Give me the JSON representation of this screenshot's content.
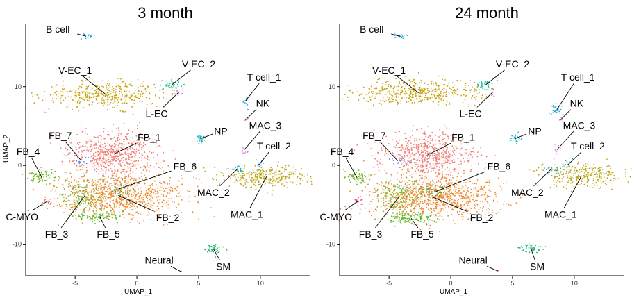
{
  "chart_data": [
    {
      "type": "scatter",
      "title": "3 month",
      "xlabel": "UMAP_1",
      "ylabel": "UMAP_2",
      "xlim": [
        -9,
        14
      ],
      "ylim": [
        -14,
        18
      ],
      "xticks": [
        -5,
        0,
        5,
        10
      ],
      "yticks": [
        -10,
        0,
        10
      ],
      "grid": false,
      "clusters": [
        {
          "name": "B cell",
          "color": "#1aa3de",
          "center": [
            -4.1,
            16.4
          ],
          "spread": [
            0.35,
            0.2
          ],
          "n": 18,
          "label_at": [
            -6.4,
            17.3
          ]
        },
        {
          "name": "V-EC_1",
          "color": "#c8a30e",
          "center": [
            -2.5,
            9.0
          ],
          "spread": [
            2.5,
            0.8
          ],
          "n": 420,
          "label_at": [
            -5.0,
            12.1
          ]
        },
        {
          "name": "V-EC_2",
          "color": "#1cbf91",
          "center": [
            2.8,
            10.2
          ],
          "spread": [
            0.4,
            0.3
          ],
          "n": 35,
          "label_at": [
            5.0,
            12.9
          ]
        },
        {
          "name": "L-EC",
          "color": "#e07ad8",
          "center": [
            3.4,
            9.3
          ],
          "spread": [
            0.15,
            0.3
          ],
          "n": 8,
          "label_at": [
            1.6,
            6.6
          ]
        },
        {
          "name": "T cell_1",
          "color": "#1aa3de",
          "center": [
            8.8,
            8.2
          ],
          "spread": [
            0.12,
            0.5
          ],
          "n": 12,
          "label_at": [
            10.3,
            11.2
          ]
        },
        {
          "name": "NK",
          "color": "#e07ad8",
          "center": [
            8.8,
            5.8
          ],
          "spread": [
            0.1,
            0.2
          ],
          "n": 5,
          "label_at": [
            10.2,
            7.9
          ]
        },
        {
          "name": "NP",
          "color": "#16b2c2",
          "center": [
            5.2,
            3.4
          ],
          "spread": [
            0.2,
            0.25
          ],
          "n": 25,
          "label_at": [
            6.8,
            4.4
          ]
        },
        {
          "name": "MAC_3",
          "color": "#e07ad8",
          "center": [
            8.7,
            2.0
          ],
          "spread": [
            0.15,
            0.4
          ],
          "n": 10,
          "label_at": [
            10.4,
            5.1
          ]
        },
        {
          "name": "T cell_2",
          "color": "#1aa3de",
          "center": [
            9.9,
            0.1
          ],
          "spread": [
            0.2,
            0.3
          ],
          "n": 10,
          "label_at": [
            11.1,
            2.5
          ]
        },
        {
          "name": "MAC_2",
          "color": "#16b2c2",
          "center": [
            8.1,
            -0.5
          ],
          "spread": [
            0.4,
            0.3
          ],
          "n": 20,
          "label_at": [
            6.2,
            -3.4
          ]
        },
        {
          "name": "MAC_1",
          "color": "#bba614",
          "center": [
            10.5,
            -1.4
          ],
          "spread": [
            1.7,
            0.7
          ],
          "n": 300,
          "label_at": [
            8.9,
            -6.2
          ]
        },
        {
          "name": "FB_1",
          "color": "#f07f78",
          "center": [
            -1.8,
            1.5
          ],
          "spread": [
            1.9,
            1.5
          ],
          "n": 650,
          "label_at": [
            1.0,
            3.6
          ]
        },
        {
          "name": "FB_7",
          "color": "#4a8ff0",
          "center": [
            -4.5,
            0.6
          ],
          "spread": [
            0.4,
            0.2
          ],
          "n": 12,
          "label_at": [
            -6.2,
            3.8
          ]
        },
        {
          "name": "FB_4",
          "color": "#6fb323",
          "center": [
            -7.7,
            -1.5
          ],
          "spread": [
            0.6,
            0.4
          ],
          "n": 70,
          "label_at": [
            -8.8,
            1.8
          ]
        },
        {
          "name": "FB_6",
          "color": "#13a845",
          "center": [
            -1.5,
            -3.0
          ],
          "spread": [
            0.5,
            0.4
          ],
          "n": 30,
          "label_at": [
            3.9,
            -0.1
          ]
        },
        {
          "name": "FB_2",
          "color": "#ee8a2d",
          "center": [
            -1.5,
            -3.8
          ],
          "spread": [
            2.6,
            1.4
          ],
          "n": 900,
          "label_at": [
            2.5,
            -6.6
          ]
        },
        {
          "name": "C-MYO",
          "color": "#e8409a",
          "center": [
            -7.3,
            -4.6
          ],
          "spread": [
            0.12,
            0.3
          ],
          "n": 8,
          "label_at": [
            -9.3,
            -6.5
          ]
        },
        {
          "name": "FB_3",
          "color": "#7aba2a",
          "center": [
            -4.2,
            -3.8
          ],
          "spread": [
            0.9,
            1.2
          ],
          "n": 160,
          "label_at": [
            -6.5,
            -8.7
          ]
        },
        {
          "name": "FB_5",
          "color": "#5cb62a",
          "center": [
            -3.0,
            -6.5
          ],
          "spread": [
            1.0,
            0.3
          ],
          "n": 80,
          "label_at": [
            -2.3,
            -8.7
          ]
        },
        {
          "name": "SM",
          "color": "#17b56d",
          "center": [
            6.2,
            -10.6
          ],
          "spread": [
            0.4,
            0.3
          ],
          "n": 40,
          "label_at": [
            7.0,
            -12.8
          ]
        },
        {
          "name": "Neural",
          "color": "#e8409a",
          "center": [
            3.6,
            -13.5
          ],
          "spread": [
            0.05,
            0.05
          ],
          "n": 2,
          "label_at": [
            1.8,
            -12.0
          ]
        }
      ]
    },
    {
      "type": "scatter",
      "title": "24 month",
      "xlabel": "UMAP_1",
      "ylabel": "",
      "xlim": [
        -9,
        14
      ],
      "ylim": [
        -14,
        18
      ],
      "xticks": [
        -5,
        0,
        5,
        10
      ],
      "yticks": [
        -10,
        0,
        10
      ],
      "grid": false,
      "clusters": [
        {
          "name": "B cell",
          "color": "#1aa3de",
          "center": [
            -4.1,
            16.4
          ],
          "spread": [
            0.35,
            0.2
          ],
          "n": 18,
          "label_at": [
            -6.4,
            17.3
          ]
        },
        {
          "name": "V-EC_1",
          "color": "#c8a30e",
          "center": [
            -2.6,
            9.2
          ],
          "spread": [
            2.5,
            0.8
          ],
          "n": 450,
          "label_at": [
            -5.0,
            12.1
          ]
        },
        {
          "name": "V-EC_2",
          "color": "#1cbf91",
          "center": [
            2.8,
            10.2
          ],
          "spread": [
            0.4,
            0.3
          ],
          "n": 35,
          "label_at": [
            5.0,
            12.9
          ]
        },
        {
          "name": "L-EC",
          "color": "#e07ad8",
          "center": [
            3.4,
            9.3
          ],
          "spread": [
            0.15,
            0.3
          ],
          "n": 8,
          "label_at": [
            1.6,
            6.6
          ]
        },
        {
          "name": "T cell_1",
          "color": "#1aa3de",
          "center": [
            8.6,
            7.1
          ],
          "spread": [
            0.3,
            0.4
          ],
          "n": 25,
          "label_at": [
            10.3,
            11.2
          ]
        },
        {
          "name": "NK",
          "color": "#e07ad8",
          "center": [
            8.9,
            5.8
          ],
          "spread": [
            0.1,
            0.2
          ],
          "n": 6,
          "label_at": [
            10.2,
            7.9
          ]
        },
        {
          "name": "NP",
          "color": "#16b2c2",
          "center": [
            5.2,
            3.4
          ],
          "spread": [
            0.2,
            0.25
          ],
          "n": 25,
          "label_at": [
            6.8,
            4.4
          ]
        },
        {
          "name": "MAC_3",
          "color": "#e07ad8",
          "center": [
            8.6,
            2.0
          ],
          "spread": [
            0.15,
            0.4
          ],
          "n": 10,
          "label_at": [
            10.4,
            5.1
          ]
        },
        {
          "name": "T cell_2",
          "color": "#1aa3de",
          "center": [
            9.5,
            0.1
          ],
          "spread": [
            0.2,
            0.3
          ],
          "n": 10,
          "label_at": [
            11.1,
            2.5
          ]
        },
        {
          "name": "MAC_2",
          "color": "#16b2c2",
          "center": [
            8.1,
            -0.5
          ],
          "spread": [
            0.4,
            0.3
          ],
          "n": 20,
          "label_at": [
            6.2,
            -3.4
          ]
        },
        {
          "name": "MAC_1",
          "color": "#bba614",
          "center": [
            10.6,
            -1.3
          ],
          "spread": [
            1.7,
            0.7
          ],
          "n": 280,
          "label_at": [
            8.9,
            -6.2
          ]
        },
        {
          "name": "FB_1",
          "color": "#f07f78",
          "center": [
            -1.9,
            1.3
          ],
          "spread": [
            1.9,
            1.5
          ],
          "n": 650,
          "label_at": [
            1.0,
            3.6
          ]
        },
        {
          "name": "FB_7",
          "color": "#4a8ff0",
          "center": [
            -4.3,
            0.6
          ],
          "spread": [
            0.4,
            0.2
          ],
          "n": 12,
          "label_at": [
            -6.2,
            3.8
          ]
        },
        {
          "name": "FB_4",
          "color": "#6fb323",
          "center": [
            -7.6,
            -1.5
          ],
          "spread": [
            0.6,
            0.4
          ],
          "n": 60,
          "label_at": [
            -8.8,
            1.8
          ]
        },
        {
          "name": "FB_6",
          "color": "#13a845",
          "center": [
            -1.2,
            -3.3
          ],
          "spread": [
            0.7,
            0.4
          ],
          "n": 45,
          "label_at": [
            3.9,
            -0.1
          ]
        },
        {
          "name": "FB_2",
          "color": "#ee8a2d",
          "center": [
            -1.5,
            -4.0
          ],
          "spread": [
            2.6,
            1.4
          ],
          "n": 950,
          "label_at": [
            2.5,
            -6.6
          ]
        },
        {
          "name": "C-MYO",
          "color": "#e8409a",
          "center": [
            -7.5,
            -4.5
          ],
          "spread": [
            0.15,
            0.3
          ],
          "n": 8,
          "label_at": [
            -9.3,
            -6.5
          ]
        },
        {
          "name": "FB_3",
          "color": "#7aba2a",
          "center": [
            -4.2,
            -4.0
          ],
          "spread": [
            0.9,
            1.2
          ],
          "n": 150,
          "label_at": [
            -6.5,
            -8.7
          ]
        },
        {
          "name": "FB_5",
          "color": "#5cb62a",
          "center": [
            -3.2,
            -6.7
          ],
          "spread": [
            1.1,
            0.35
          ],
          "n": 110,
          "label_at": [
            -2.3,
            -8.7
          ]
        },
        {
          "name": "SM",
          "color": "#17b56d",
          "center": [
            6.5,
            -10.6
          ],
          "spread": [
            0.4,
            0.3
          ],
          "n": 40,
          "label_at": [
            7.0,
            -12.8
          ]
        },
        {
          "name": "Neural",
          "color": "#e8409a",
          "center": [
            3.8,
            -13.4
          ],
          "spread": [
            0.05,
            0.05
          ],
          "n": 2,
          "label_at": [
            1.8,
            -12.0
          ]
        }
      ]
    }
  ]
}
